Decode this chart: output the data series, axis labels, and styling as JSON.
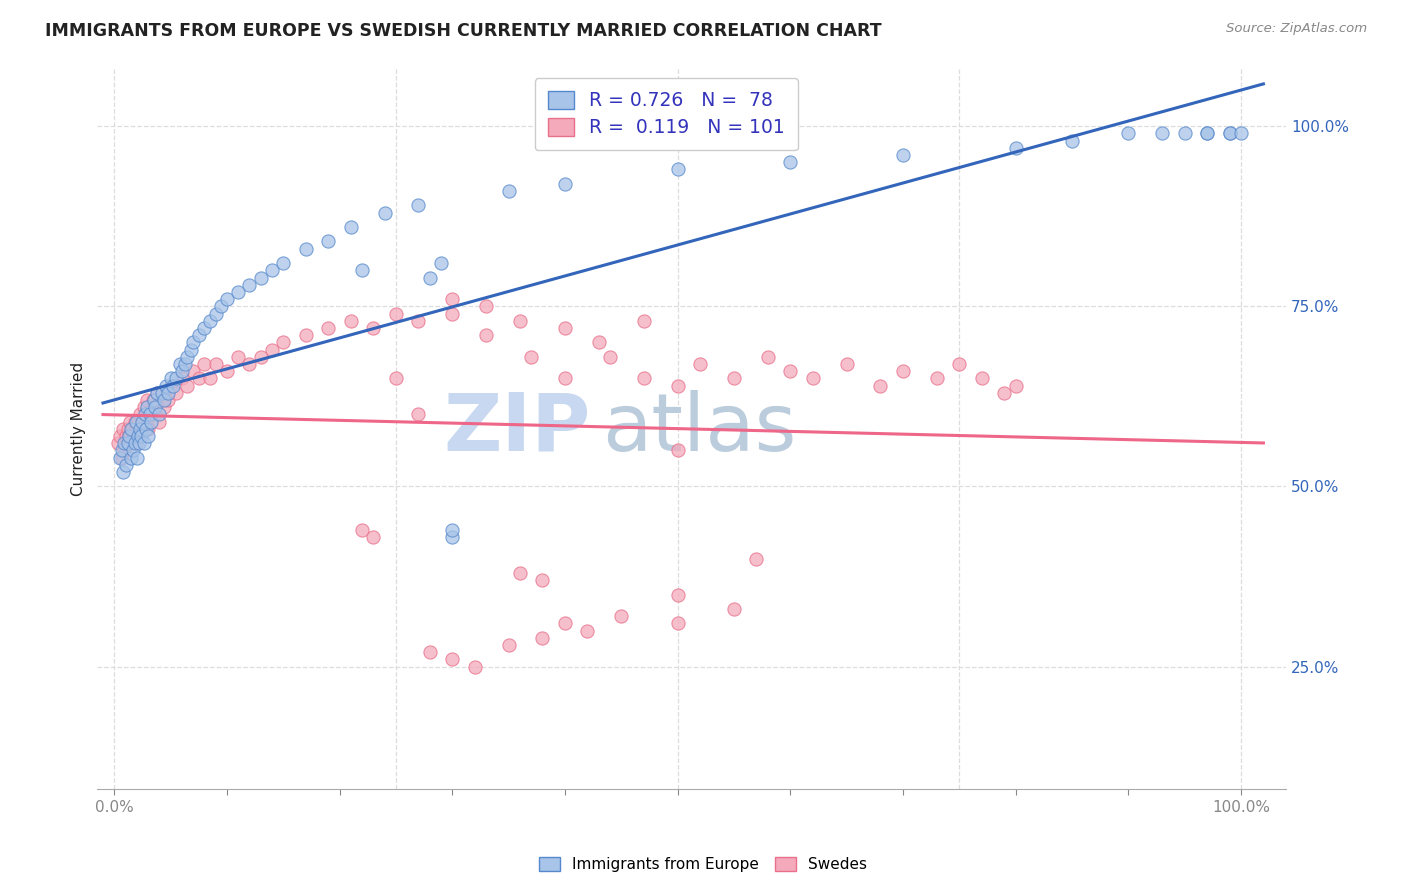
{
  "title": "IMMIGRANTS FROM EUROPE VS SWEDISH CURRENTLY MARRIED CORRELATION CHART",
  "source": "Source: ZipAtlas.com",
  "ylabel": "Currently Married",
  "r_blue": 0.726,
  "n_blue": 78,
  "r_pink": 0.119,
  "n_pink": 101,
  "blue_scatter_color": "#A8C4E8",
  "blue_edge_color": "#5588CC",
  "pink_scatter_color": "#F4AABB",
  "pink_edge_color": "#E8708A",
  "blue_line_color": "#3366BB",
  "pink_line_color": "#EE6688",
  "right_tick_color": "#3366BB",
  "grid_color": "#DDDDDD",
  "bg_color": "#FFFFFF",
  "title_color": "#222222",
  "source_color": "#888888",
  "axis_label_color": "#222222",
  "bottom_tick_color": "#888888",
  "watermark_zip_color": "#C8D8F0",
  "watermark_atlas_color": "#BBCCDD",
  "blue_x": [
    0.005,
    0.007,
    0.008,
    0.009,
    0.01,
    0.012,
    0.013,
    0.015,
    0.015,
    0.017,
    0.018,
    0.019,
    0.02,
    0.021,
    0.022,
    0.023,
    0.024,
    0.025,
    0.026,
    0.027,
    0.028,
    0.029,
    0.03,
    0.032,
    0.033,
    0.035,
    0.036,
    0.038,
    0.04,
    0.042,
    0.044,
    0.046,
    0.048,
    0.05,
    0.052,
    0.055,
    0.058,
    0.06,
    0.063,
    0.065,
    0.068,
    0.07,
    0.075,
    0.08,
    0.085,
    0.09,
    0.095,
    0.1,
    0.11,
    0.12,
    0.13,
    0.14,
    0.15,
    0.17,
    0.19,
    0.21,
    0.24,
    0.27,
    0.3,
    0.3,
    0.35,
    0.4,
    0.5,
    0.6,
    0.7,
    0.8,
    0.85,
    0.9,
    0.93,
    0.95,
    0.97,
    0.97,
    0.99,
    0.99,
    1.0,
    0.28,
    0.29,
    0.22
  ],
  "blue_y": [
    0.54,
    0.55,
    0.52,
    0.56,
    0.53,
    0.56,
    0.57,
    0.54,
    0.58,
    0.55,
    0.56,
    0.59,
    0.54,
    0.57,
    0.56,
    0.58,
    0.57,
    0.59,
    0.56,
    0.6,
    0.58,
    0.61,
    0.57,
    0.6,
    0.59,
    0.62,
    0.61,
    0.63,
    0.6,
    0.63,
    0.62,
    0.64,
    0.63,
    0.65,
    0.64,
    0.65,
    0.67,
    0.66,
    0.67,
    0.68,
    0.69,
    0.7,
    0.71,
    0.72,
    0.73,
    0.74,
    0.75,
    0.76,
    0.77,
    0.78,
    0.79,
    0.8,
    0.81,
    0.83,
    0.84,
    0.86,
    0.88,
    0.89,
    0.43,
    0.44,
    0.91,
    0.92,
    0.94,
    0.95,
    0.96,
    0.97,
    0.98,
    0.99,
    0.99,
    0.99,
    0.99,
    0.99,
    0.99,
    0.99,
    0.99,
    0.79,
    0.81,
    0.8
  ],
  "pink_x": [
    0.003,
    0.005,
    0.007,
    0.008,
    0.009,
    0.01,
    0.011,
    0.012,
    0.013,
    0.014,
    0.015,
    0.016,
    0.017,
    0.018,
    0.019,
    0.02,
    0.021,
    0.022,
    0.023,
    0.024,
    0.025,
    0.026,
    0.027,
    0.028,
    0.029,
    0.03,
    0.032,
    0.034,
    0.036,
    0.038,
    0.04,
    0.042,
    0.044,
    0.046,
    0.048,
    0.05,
    0.055,
    0.06,
    0.065,
    0.07,
    0.075,
    0.08,
    0.085,
    0.09,
    0.1,
    0.11,
    0.12,
    0.13,
    0.14,
    0.15,
    0.17,
    0.19,
    0.21,
    0.23,
    0.25,
    0.27,
    0.3,
    0.33,
    0.36,
    0.4,
    0.44,
    0.47,
    0.5,
    0.52,
    0.55,
    0.58,
    0.6,
    0.62,
    0.65,
    0.68,
    0.7,
    0.73,
    0.75,
    0.77,
    0.79,
    0.8,
    0.5,
    0.55,
    0.5,
    0.57,
    0.38,
    0.4,
    0.42,
    0.45,
    0.35,
    0.36,
    0.38,
    0.3,
    0.32,
    0.28,
    0.22,
    0.23,
    0.25,
    0.27,
    0.3,
    0.33,
    0.37,
    0.4,
    0.43,
    0.47,
    0.5
  ],
  "pink_y": [
    0.56,
    0.57,
    0.54,
    0.58,
    0.55,
    0.57,
    0.56,
    0.58,
    0.57,
    0.59,
    0.56,
    0.58,
    0.57,
    0.59,
    0.58,
    0.56,
    0.59,
    0.57,
    0.6,
    0.58,
    0.59,
    0.61,
    0.59,
    0.6,
    0.62,
    0.58,
    0.6,
    0.62,
    0.6,
    0.63,
    0.59,
    0.62,
    0.61,
    0.63,
    0.62,
    0.64,
    0.63,
    0.65,
    0.64,
    0.66,
    0.65,
    0.67,
    0.65,
    0.67,
    0.66,
    0.68,
    0.67,
    0.68,
    0.69,
    0.7,
    0.71,
    0.72,
    0.73,
    0.72,
    0.74,
    0.73,
    0.74,
    0.75,
    0.73,
    0.65,
    0.68,
    0.65,
    0.64,
    0.67,
    0.65,
    0.68,
    0.66,
    0.65,
    0.67,
    0.64,
    0.66,
    0.65,
    0.67,
    0.65,
    0.63,
    0.64,
    0.35,
    0.33,
    0.31,
    0.4,
    0.29,
    0.31,
    0.3,
    0.32,
    0.28,
    0.38,
    0.37,
    0.26,
    0.25,
    0.27,
    0.44,
    0.43,
    0.65,
    0.6,
    0.76,
    0.71,
    0.68,
    0.72,
    0.7,
    0.73,
    0.55
  ]
}
